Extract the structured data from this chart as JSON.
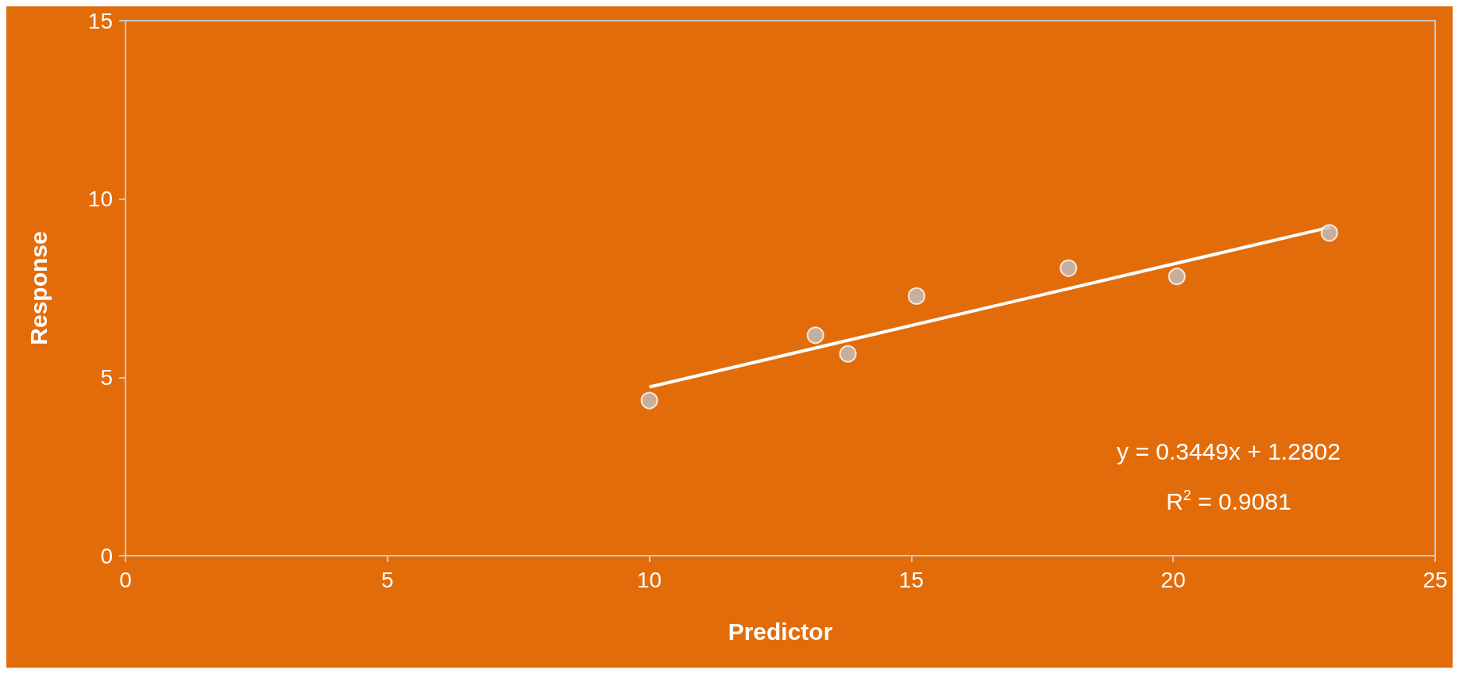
{
  "chart_data": {
    "type": "scatter",
    "xlabel": "Predictor",
    "ylabel": "Response",
    "x": [
      10,
      13.17,
      13.79,
      15.1,
      18,
      20.07,
      22.98
    ],
    "series": [
      {
        "marker": "circle",
        "color": "#c0c0c0",
        "values": [
          4.35,
          6.18,
          5.66,
          7.28,
          8.06,
          7.83,
          9.05
        ]
      },
      {
        "type": "line",
        "marker": "none",
        "color": "#ffffff",
        "x": [
          10,
          23
        ],
        "values": [
          4.73,
          9.21
        ]
      }
    ],
    "annotations": [
      "y = 0.3449x + 1.2802",
      "R$^{2}$ = 0.9081"
    ],
    "xlim": [
      0,
      25
    ],
    "xticks": [
      0,
      5,
      10,
      15,
      20,
      25
    ],
    "ylim": [
      0,
      15
    ],
    "yticks": [
      0,
      5,
      10,
      15
    ],
    "grid": false
  }
}
